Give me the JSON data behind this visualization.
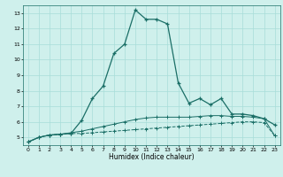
{
  "xlabel": "Humidex (Indice chaleur)",
  "xlim": [
    -0.5,
    23.5
  ],
  "ylim": [
    4.5,
    13.5
  ],
  "yticks": [
    5,
    6,
    7,
    8,
    9,
    10,
    11,
    12,
    13
  ],
  "xticks": [
    0,
    1,
    2,
    3,
    4,
    5,
    6,
    7,
    8,
    9,
    10,
    11,
    12,
    13,
    14,
    15,
    16,
    17,
    18,
    19,
    20,
    21,
    22,
    23
  ],
  "bg_color": "#cff0ec",
  "grid_color": "#a8ddd8",
  "line_color": "#1a6e66",
  "line1_x": [
    0,
    1,
    2,
    3,
    4,
    5,
    6,
    7,
    8,
    9,
    10,
    11,
    12,
    13,
    14,
    15,
    16,
    17,
    18,
    19,
    20,
    21,
    22,
    23
  ],
  "line1_y": [
    4.7,
    5.0,
    5.15,
    5.2,
    5.25,
    5.25,
    5.3,
    5.35,
    5.4,
    5.45,
    5.5,
    5.55,
    5.6,
    5.65,
    5.7,
    5.75,
    5.8,
    5.85,
    5.9,
    5.95,
    6.0,
    6.0,
    5.95,
    5.1
  ],
  "line2_x": [
    0,
    1,
    2,
    3,
    4,
    5,
    6,
    7,
    8,
    9,
    10,
    11,
    12,
    13,
    14,
    15,
    16,
    17,
    18,
    19,
    20,
    21,
    22,
    23
  ],
  "line2_y": [
    4.7,
    5.0,
    5.15,
    5.2,
    5.3,
    5.4,
    5.55,
    5.7,
    5.85,
    6.0,
    6.15,
    6.25,
    6.3,
    6.3,
    6.3,
    6.3,
    6.35,
    6.4,
    6.4,
    6.35,
    6.35,
    6.3,
    6.2,
    5.1
  ],
  "line3_x": [
    0,
    1,
    2,
    3,
    4,
    5,
    6,
    7,
    8,
    9,
    10,
    11,
    12,
    13,
    14,
    15,
    16,
    17,
    18,
    19,
    20,
    21,
    22,
    23
  ],
  "line3_y": [
    4.7,
    5.0,
    5.15,
    5.2,
    5.25,
    6.1,
    7.5,
    8.3,
    10.4,
    11.0,
    13.2,
    12.6,
    12.6,
    12.3,
    8.5,
    7.2,
    7.5,
    7.1,
    7.5,
    6.5,
    6.5,
    6.4,
    6.2,
    5.8
  ]
}
